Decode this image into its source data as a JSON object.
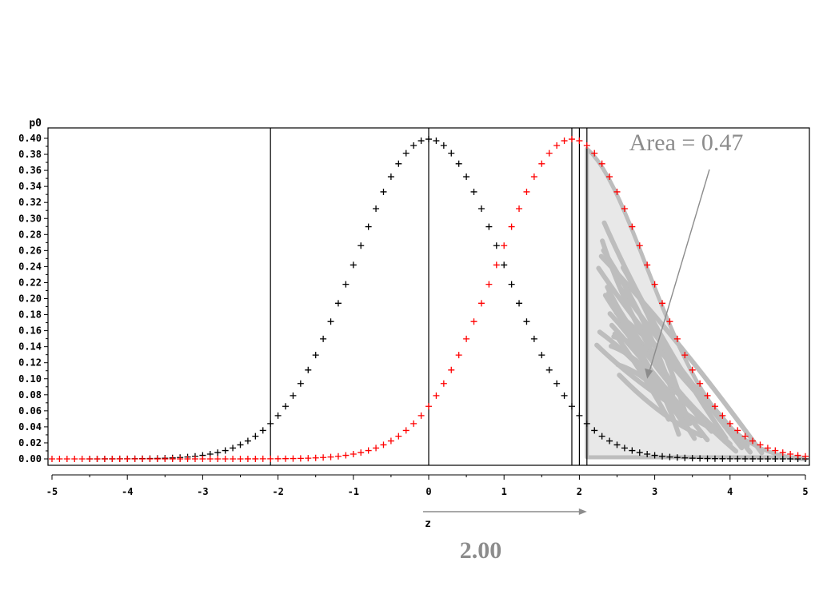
{
  "chart_data": {
    "type": "scatter",
    "title": "",
    "xlabel": "z",
    "ylabel": "p0",
    "xlim": [
      -5,
      5
    ],
    "ylim": [
      0,
      0.4
    ],
    "x_ticks": [
      -5,
      -4,
      -3,
      -2,
      -1,
      0,
      1,
      2,
      3,
      4,
      5
    ],
    "y_ticks": [
      "0.00",
      "0.02",
      "0.04",
      "0.06",
      "0.08",
      "0.10",
      "0.12",
      "0.14",
      "0.16",
      "0.18",
      "0.20",
      "0.22",
      "0.24",
      "0.26",
      "0.28",
      "0.30",
      "0.32",
      "0.34",
      "0.36",
      "0.38",
      "0.40"
    ],
    "series": [
      {
        "color": "#000000",
        "marker": "+",
        "mean": 0.0,
        "x_range": [
          -4.5,
          5.0
        ],
        "step": 0.1
      },
      {
        "color": "#ff0000",
        "marker": "+",
        "mean": 1.9,
        "x_range": [
          -5.0,
          5.0
        ],
        "step": 0.1
      }
    ],
    "vertical_lines": [
      -2.1,
      0.0,
      1.9,
      2.0,
      2.1
    ],
    "shaded_region": {
      "x_from": 2.1,
      "x_to": 5.0,
      "color": "#bdbdbd"
    },
    "annotations": [
      {
        "text": "Area = 0.47",
        "points_to": [
          2.9,
          0.1
        ]
      },
      {
        "text": "2.00"
      }
    ],
    "shift_arrow": {
      "from": 0.0,
      "to": 2.1
    },
    "grid": false,
    "legend": "none"
  }
}
